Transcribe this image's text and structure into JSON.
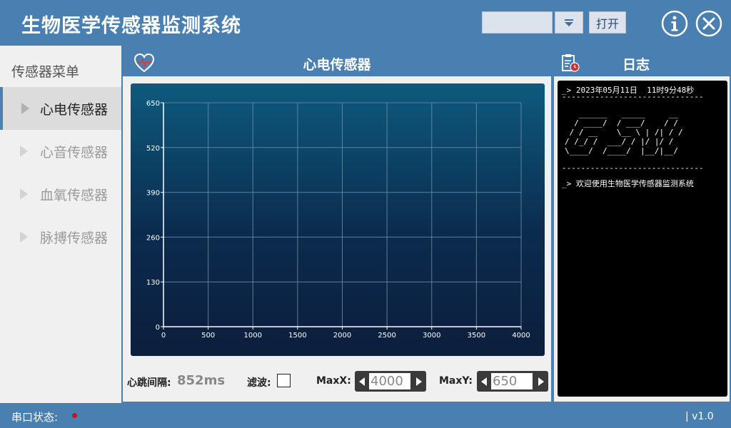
{
  "app": {
    "title": "生物医学传感器监测系统",
    "open_label": "打开",
    "port_value": ""
  },
  "sidebar": {
    "title": "传感器菜单",
    "items": [
      {
        "label": "心电传感器",
        "active": true
      },
      {
        "label": "心音传感器",
        "active": false
      },
      {
        "label": "血氧传感器",
        "active": false
      },
      {
        "label": "脉搏传感器",
        "active": false
      }
    ]
  },
  "main": {
    "title": "心电传感器",
    "heartbeat_label": "心跳间隔:",
    "heartbeat_value": "852ms",
    "filter_label": "滤波:",
    "maxx_label": "MaxX:",
    "maxx_value": "4000",
    "maxy_label": "MaxY:",
    "maxy_value": "650"
  },
  "chart_data": {
    "type": "line",
    "title": "",
    "xlabel": "",
    "ylabel": "",
    "xlim": [
      0,
      4000
    ],
    "ylim": [
      0,
      650
    ],
    "x_ticks": [
      0,
      500,
      1000,
      1500,
      2000,
      2500,
      3000,
      3500,
      4000
    ],
    "y_ticks": [
      0,
      130,
      260,
      390,
      520,
      650
    ],
    "grid": true,
    "series": []
  },
  "log": {
    "title": "日志",
    "line1": "_> 2023年05月11日  11时9分48秒",
    "separator": "------------------------------",
    "ascii": "   ______   _____     __\n  / ____/  / ___/    / /\n / / __    \\__ \\ | /| / / \n/ /_/ /  ___/ / |/ |/ /  \n\\____/  /____/  |__/|__/ ",
    "line2": "_> 欢迎使用生物医学传感器监测系统"
  },
  "status": {
    "serial_label": "串口状态:",
    "version": "| v1.0"
  },
  "colors": {
    "primary": "#4a7fb2",
    "chart_top": "#0e5a7e",
    "chart_bottom": "#0c1e3c",
    "status_dot": "#d10f0f"
  }
}
